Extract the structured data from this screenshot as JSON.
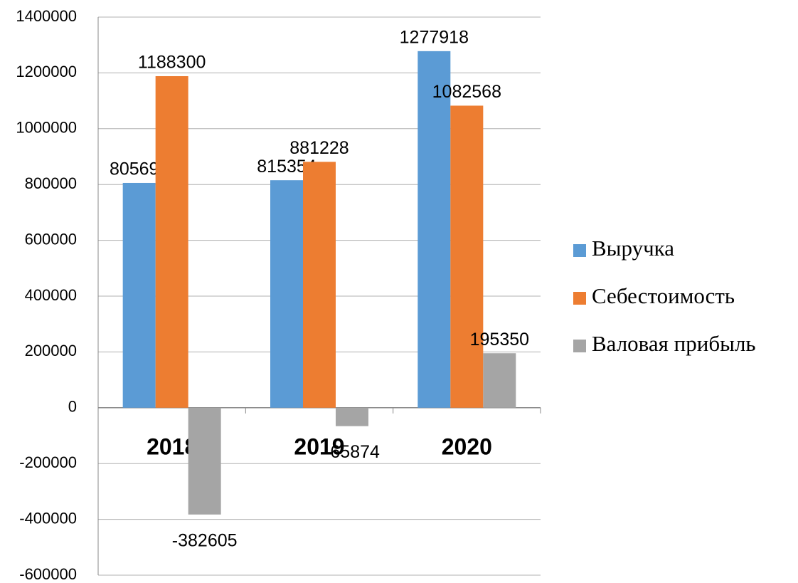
{
  "chart_data": {
    "type": "bar",
    "categories": [
      "2018",
      "2019",
      "2020"
    ],
    "series": [
      {
        "name": "Выручка",
        "color": "#5b9bd5",
        "values": [
          805695,
          815354,
          1277918
        ]
      },
      {
        "name": "Себестоимость",
        "color": "#ed7d31",
        "values": [
          1188300,
          881228,
          1082568
        ]
      },
      {
        "name": "Валовая прибыль",
        "color": "#a5a5a5",
        "values": [
          -382605,
          -65874,
          195350
        ]
      }
    ],
    "ylim": [
      -600000,
      1400000
    ],
    "yticks": [
      -600000,
      -400000,
      -200000,
      0,
      200000,
      400000,
      600000,
      800000,
      1000000,
      1200000,
      1400000
    ],
    "grid": true,
    "legend": "right"
  }
}
